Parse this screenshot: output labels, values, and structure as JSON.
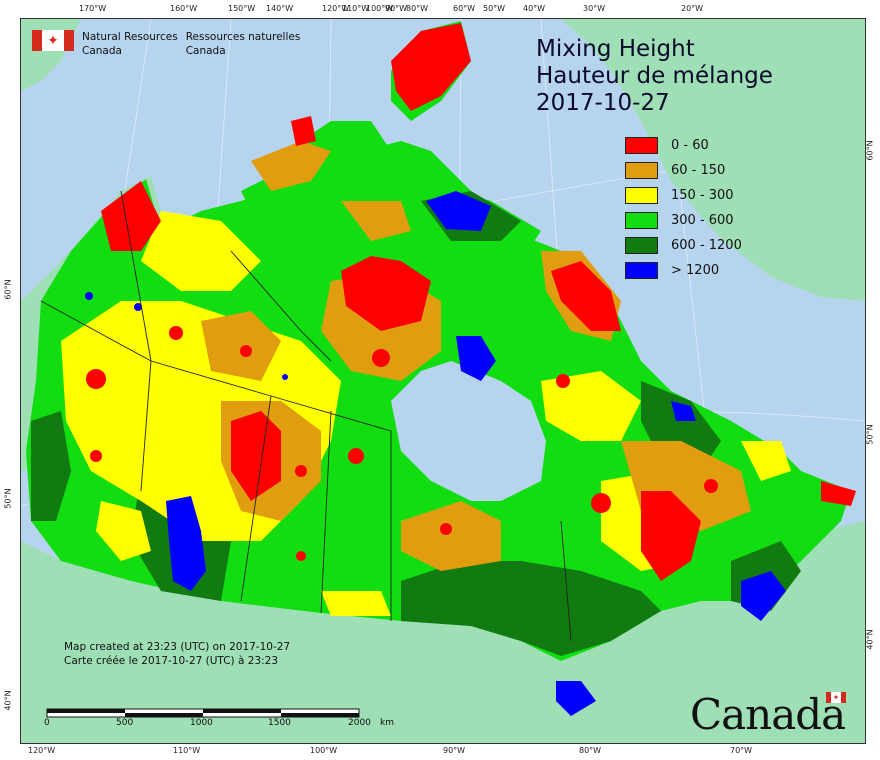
{
  "title": {
    "en": "Mixing Height",
    "fr": "Hauteur de mélange",
    "date": "2017-10-27"
  },
  "legend": {
    "items": [
      {
        "label": "0 - 60",
        "color": "#ff0000"
      },
      {
        "label": "60 - 150",
        "color": "#e09d10"
      },
      {
        "label": "150 - 300",
        "color": "#ffff00"
      },
      {
        "label": "300 - 600",
        "color": "#11dd11"
      },
      {
        "label": "600 - 1200",
        "color": "#117a11"
      },
      {
        "label": "> 1200",
        "color": "#0000ff"
      }
    ]
  },
  "agency": {
    "en_line1": "Natural Resources",
    "en_line2": "Canada",
    "fr_line1": "Ressources naturelles",
    "fr_line2": "Canada"
  },
  "credits": {
    "en": "Map created at 23:23 (UTC) on 2017-10-27",
    "fr": "Carte créée le 2017-10-27 (UTC) à 23:23"
  },
  "scale": {
    "ticks": [
      "0",
      "500",
      "1000",
      "1500",
      "2000"
    ],
    "unit": "km"
  },
  "wordmark": "Canada",
  "top_ticks": [
    "170°W",
    "160°W",
    "150°W",
    "140°W",
    "120°W",
    "110°W",
    "100°W",
    "90°W",
    "80°W",
    "60°W",
    "50°W",
    "40°W",
    "30°W",
    "20°W"
  ],
  "bottom_ticks": [
    "120°W",
    "110°W",
    "100°W",
    "90°W",
    "80°W",
    "70°W"
  ],
  "left_ticks": [
    "60°N",
    "50°N",
    "40°N"
  ],
  "right_ticks": [
    "60°N",
    "50°N",
    "40°N"
  ],
  "colors": {
    "ocean": "#b7d4ee",
    "land_outside": "#9edfb6",
    "boundary": "#222222"
  }
}
